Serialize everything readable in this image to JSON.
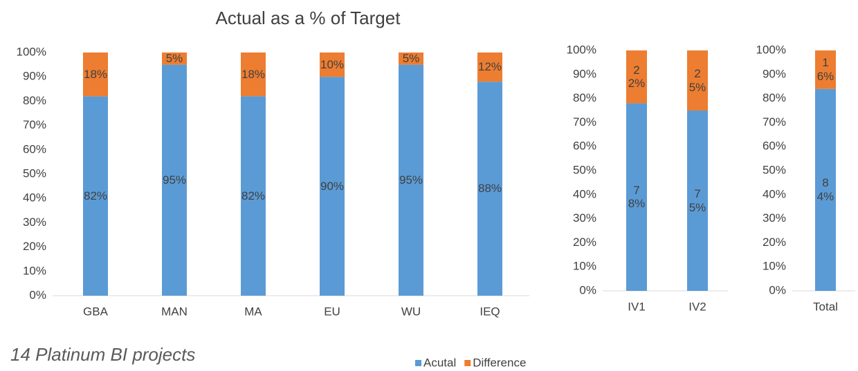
{
  "title": "Actual as a % of Target",
  "note": "14 Platinum BI projects",
  "chart_data": [
    {
      "type": "bar",
      "stacked": true,
      "categories": [
        "GBA",
        "MAN",
        "MA",
        "EU",
        "WU",
        "IEQ"
      ],
      "series": [
        {
          "name": "Acutal",
          "color": "#5b9bd5",
          "values": [
            82,
            95,
            82,
            90,
            95,
            88
          ],
          "value_labels": [
            "82%",
            "95%",
            "82%",
            "90%",
            "95%",
            "88%"
          ]
        },
        {
          "name": "Difference",
          "color": "#ed7d31",
          "values": [
            18,
            5,
            18,
            10,
            5,
            12
          ],
          "value_labels": [
            "18%",
            "5%",
            "18%",
            "10%",
            "5%",
            "12%"
          ]
        }
      ],
      "ylim": [
        0,
        100
      ],
      "yticks": [
        {
          "value": 0,
          "label": "0%"
        },
        {
          "value": 10,
          "label": "10%"
        },
        {
          "value": 20,
          "label": "20%"
        },
        {
          "value": 30,
          "label": "30%"
        },
        {
          "value": 40,
          "label": "40%"
        },
        {
          "value": 50,
          "label": "50%"
        },
        {
          "value": 60,
          "label": "60%"
        },
        {
          "value": 70,
          "label": "70%"
        },
        {
          "value": 80,
          "label": "80%"
        },
        {
          "value": 90,
          "label": "90%"
        },
        {
          "value": 100,
          "label": "100%"
        }
      ]
    },
    {
      "type": "bar",
      "stacked": true,
      "categories": [
        "IV1",
        "IV2"
      ],
      "series": [
        {
          "color": "#5b9bd5",
          "values": [
            78,
            75
          ],
          "value_labels": [
            "78%",
            "75%"
          ]
        },
        {
          "color": "#ed7d31",
          "values": [
            22,
            25
          ],
          "value_labels": [
            "22%",
            "25%"
          ]
        }
      ],
      "ylim": [
        0,
        100
      ],
      "yticks": [
        {
          "value": 0,
          "label": "0%"
        },
        {
          "value": 10,
          "label": "10%"
        },
        {
          "value": 20,
          "label": "20%"
        },
        {
          "value": 30,
          "label": "30%"
        },
        {
          "value": 40,
          "label": "40%"
        },
        {
          "value": 50,
          "label": "50%"
        },
        {
          "value": 60,
          "label": "60%"
        },
        {
          "value": 70,
          "label": "70%"
        },
        {
          "value": 80,
          "label": "80%"
        },
        {
          "value": 90,
          "label": "90%"
        },
        {
          "value": 100,
          "label": "100%"
        }
      ]
    },
    {
      "type": "bar",
      "stacked": true,
      "categories": [
        "Total"
      ],
      "series": [
        {
          "color": "#5b9bd5",
          "values": [
            84
          ],
          "value_labels": [
            "84%"
          ]
        },
        {
          "color": "#ed7d31",
          "values": [
            16
          ],
          "value_labels": [
            "16%"
          ]
        }
      ],
      "ylim": [
        0,
        100
      ],
      "yticks": [
        {
          "value": 0,
          "label": "0%"
        },
        {
          "value": 10,
          "label": "10%"
        },
        {
          "value": 20,
          "label": "20%"
        },
        {
          "value": 30,
          "label": "30%"
        },
        {
          "value": 40,
          "label": "40%"
        },
        {
          "value": 50,
          "label": "50%"
        },
        {
          "value": 60,
          "label": "60%"
        },
        {
          "value": 70,
          "label": "70%"
        },
        {
          "value": 80,
          "label": "80%"
        },
        {
          "value": 90,
          "label": "90%"
        },
        {
          "value": 100,
          "label": "100%"
        }
      ]
    }
  ]
}
